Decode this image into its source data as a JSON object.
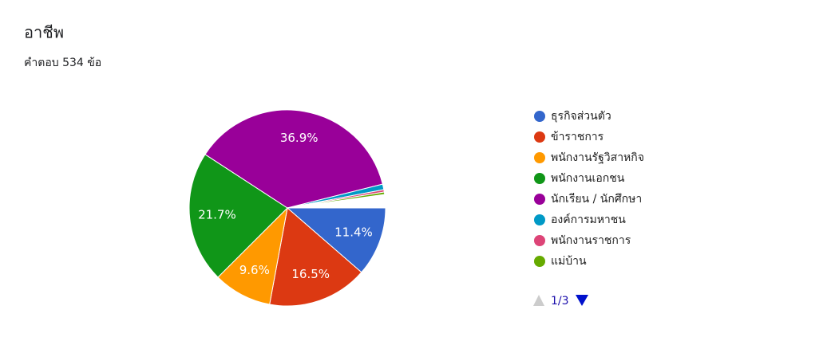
{
  "chart_data": {
    "type": "pie",
    "title": "อาชีพ",
    "subtitle": "คำตอบ 534 ข้อ",
    "categories": [
      "ธุรกิจส่วนตัว",
      "ข้าราชการ",
      "พนักงานรัฐวิสาหกิจ",
      "พนักงานเอกชน",
      "นักเรียน / นักศึกษา",
      "องค์การมหาชน",
      "พนักงานราชการ",
      "แม่บ้าน"
    ],
    "values": [
      11.4,
      16.5,
      9.6,
      21.7,
      36.9,
      0.9,
      0.4,
      0.4
    ],
    "value_labels": [
      "11.4%",
      "16.5%",
      "9.6%",
      "21.7%",
      "36.9%",
      null,
      null,
      null
    ],
    "colors": [
      "#3366cc",
      "#dc3912",
      "#ff9900",
      "#109618",
      "#990099",
      "#0099c6",
      "#dd4477",
      "#66aa00"
    ],
    "legend_page": "1/3"
  }
}
